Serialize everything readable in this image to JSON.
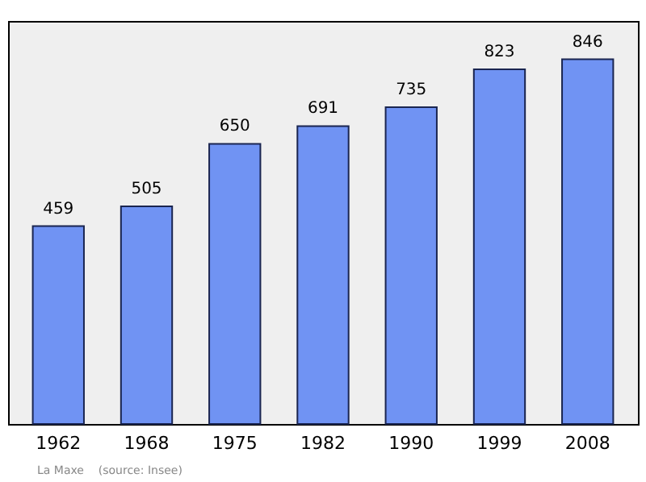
{
  "chart_data": {
    "type": "bar",
    "categories": [
      "1962",
      "1968",
      "1975",
      "1982",
      "1990",
      "1999",
      "2008"
    ],
    "values": [
      459,
      505,
      650,
      691,
      735,
      823,
      846
    ],
    "color": "#7093f3",
    "ylim": [
      0,
      935
    ],
    "data_labels": true,
    "tick_labels": "x",
    "annotations": [
      "La Maxe    (source: Insee)"
    ]
  }
}
